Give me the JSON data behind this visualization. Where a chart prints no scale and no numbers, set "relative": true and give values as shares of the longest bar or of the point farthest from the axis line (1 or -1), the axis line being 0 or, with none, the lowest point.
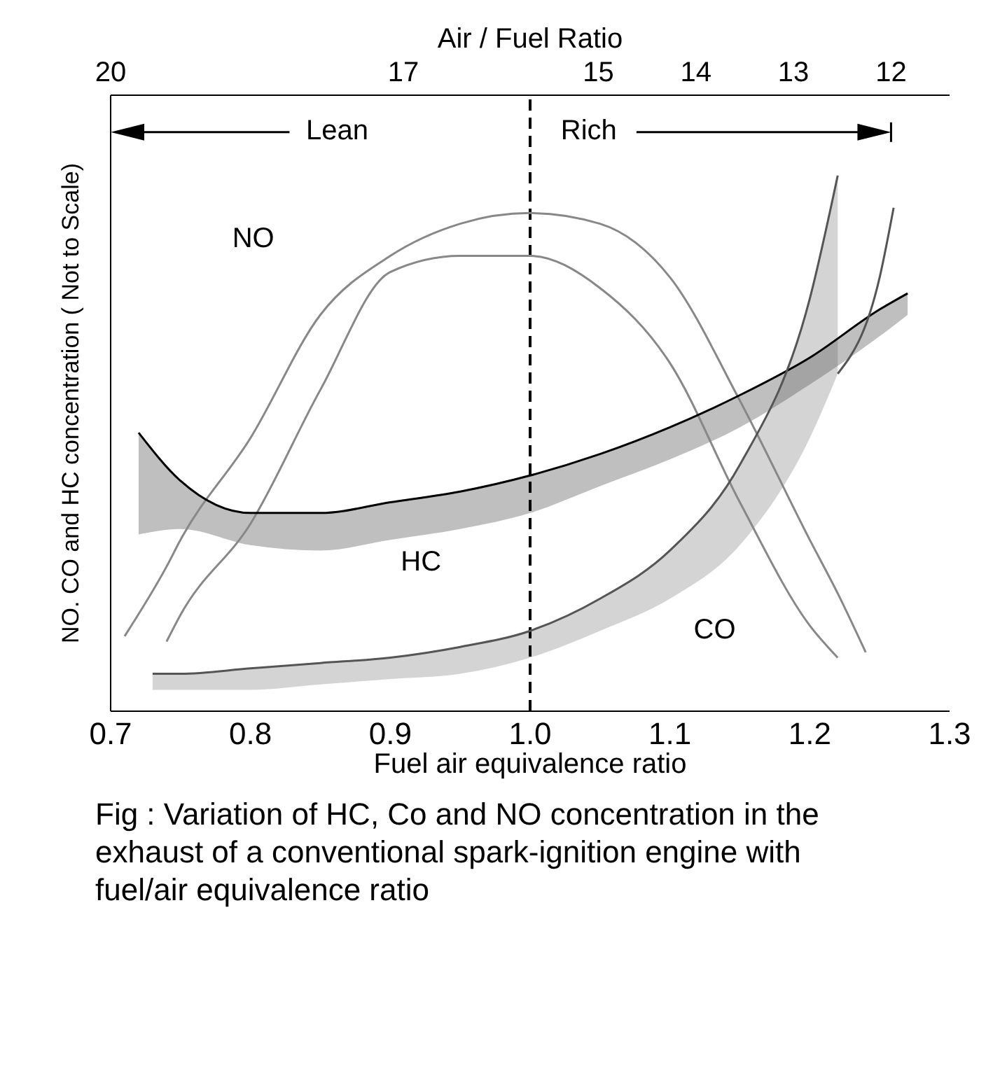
{
  "chart_data": {
    "type": "line",
    "relative": true,
    "xlabel": "Fuel air equivalence ratio",
    "ylabel": "NO. CO and HC concentration ( Not to Scale)",
    "x2label": "Air / Fuel Ratio",
    "xlim": [
      0.7,
      1.3
    ],
    "xticks": [
      0.7,
      0.8,
      0.9,
      {
        "value": 1.0,
        "label": "1.0"
      },
      1.1,
      1.2,
      1.3
    ],
    "x2lim": [
      20,
      11.4
    ],
    "x2ticks": [
      20,
      17,
      15,
      14,
      13,
      12
    ],
    "grid": false,
    "legend": false,
    "marker": "none",
    "line_style": "solid",
    "series": [
      {
        "color": "#888888",
        "x": [
          0.71,
          0.74,
          0.75,
          0.8,
          0.85,
          0.9,
          0.95,
          1.0,
          1.05,
          1.1,
          1.15,
          1.2,
          1.22,
          1.24
        ],
        "values": [
          0.14,
          0.27,
          0.32,
          0.51,
          0.74,
          0.85,
          0.91,
          0.93,
          0.91,
          0.81,
          0.58,
          0.32,
          0.22,
          0.11
        ]
      },
      {
        "color": "#888888",
        "x": [
          0.74,
          0.75,
          0.8,
          0.85,
          0.9,
          0.95,
          1.0,
          1.05,
          1.1,
          1.15,
          1.2,
          1.22
        ],
        "values": [
          0.13,
          0.18,
          0.35,
          0.6,
          0.82,
          0.85,
          0.85,
          0.79,
          0.65,
          0.39,
          0.16,
          0.1
        ]
      },
      {
        "color": "#000000",
        "x": [
          0.72,
          0.75,
          0.8,
          0.85,
          0.9,
          0.95,
          1.0,
          1.05,
          1.1,
          1.15,
          1.2,
          1.25,
          1.27
        ],
        "values": [
          0.52,
          0.43,
          0.37,
          0.37,
          0.39,
          0.41,
          0.44,
          0.48,
          0.53,
          0.59,
          0.66,
          0.75,
          0.78
        ],
        "upper": [
          0.52,
          0.43,
          0.37,
          0.37,
          0.39,
          0.41,
          0.44,
          0.48,
          0.53,
          0.59,
          0.66,
          0.75,
          0.78
        ],
        "lower": [
          0.33,
          0.34,
          0.31,
          0.3,
          0.32,
          0.34,
          0.37,
          0.42,
          0.47,
          0.53,
          0.61,
          0.7,
          0.74
        ]
      },
      {
        "color": "#555555",
        "x": [
          0.73,
          0.75,
          0.8,
          0.85,
          0.9,
          0.95,
          1.0,
          1.05,
          1.1,
          1.15,
          1.2,
          1.22
        ],
        "values": [
          0.07,
          0.07,
          0.08,
          0.09,
          0.1,
          0.12,
          0.15,
          0.21,
          0.3,
          0.46,
          0.77,
          1.0
        ],
        "upper": [
          0.07,
          0.07,
          0.08,
          0.09,
          0.1,
          0.12,
          0.15,
          0.21,
          0.3,
          0.46,
          0.77,
          1.0
        ],
        "lower": [
          0.04,
          0.04,
          0.04,
          0.05,
          0.06,
          0.07,
          0.1,
          0.15,
          0.21,
          0.31,
          0.51,
          0.63
        ]
      },
      {
        "color": "#555555",
        "x": [
          1.22,
          1.25,
          1.26
        ],
        "values": [
          0.63,
          0.81,
          0.94
        ]
      }
    ],
    "ref_lines": [
      {
        "axis": "x",
        "value": 1.0,
        "color": "#000000",
        "line_style": "dashed"
      }
    ],
    "annotations": [
      "Lean",
      "Rich",
      "NO",
      "HC",
      "CO",
      "Fig : Variation of HC, Co and NO concentration in the exhaust of a conventional spark-ignition engine with fuel/air equivalence ratio"
    ]
  }
}
